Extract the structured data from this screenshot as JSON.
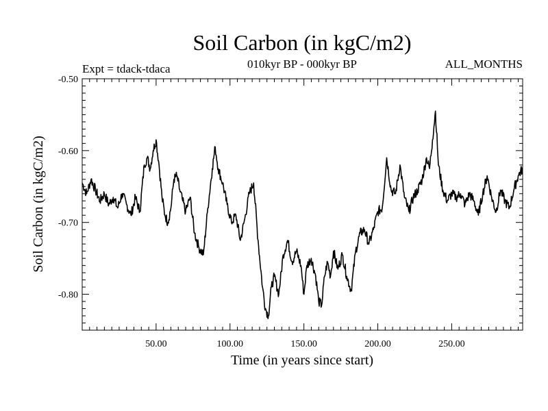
{
  "chart_data": {
    "type": "line",
    "title": "Soil Carbon (in kgC/m2)",
    "subtitle_left": "Expt = tdack-tdaca",
    "subtitle_center": "010kyr BP - 000kyr BP",
    "subtitle_right": "ALL_MONTHS",
    "xlabel": "Time (in years since start)",
    "ylabel": "Soil Carbon (in kgC/m2)",
    "xlim": [
      0,
      298
    ],
    "ylim": [
      -0.85,
      -0.5
    ],
    "x_ticks": [
      50,
      100,
      150,
      200,
      250
    ],
    "x_tick_labels": [
      "50.00",
      "100.00",
      "150.00",
      "200.00",
      "250.00"
    ],
    "y_ticks": [
      -0.5,
      -0.6,
      -0.7,
      -0.8
    ],
    "y_tick_labels": [
      "-0.50",
      "-0.60",
      "-0.70",
      "-0.80"
    ],
    "grid": false,
    "series": [
      {
        "name": "Soil Carbon",
        "color": "#000000",
        "x": [
          0,
          3,
          6,
          9,
          12,
          15,
          18,
          21,
          24,
          27,
          30,
          33,
          36,
          39,
          42,
          44,
          46,
          48,
          50,
          52,
          54,
          56,
          58,
          60,
          62,
          64,
          66,
          68,
          70,
          73,
          76,
          79,
          82,
          85,
          88,
          90,
          92,
          95,
          98,
          101,
          104,
          107,
          110,
          113,
          116,
          119,
          122,
          124,
          126,
          128,
          130,
          133,
          136,
          139,
          142,
          145,
          148,
          150,
          152,
          155,
          158,
          160,
          162,
          164,
          166,
          168,
          170,
          173,
          176,
          179,
          182,
          185,
          188,
          191,
          194,
          197,
          200,
          203,
          206,
          209,
          212,
          215,
          218,
          221,
          224,
          227,
          230,
          233,
          235,
          237,
          239,
          241,
          244,
          247,
          250,
          253,
          256,
          259,
          262,
          265,
          268,
          271,
          274,
          277,
          280,
          283,
          286,
          289,
          292,
          295,
          298
        ],
        "values": [
          -0.645,
          -0.66,
          -0.64,
          -0.655,
          -0.67,
          -0.66,
          -0.675,
          -0.665,
          -0.68,
          -0.66,
          -0.675,
          -0.69,
          -0.665,
          -0.685,
          -0.62,
          -0.61,
          -0.625,
          -0.6,
          -0.585,
          -0.62,
          -0.665,
          -0.69,
          -0.7,
          -0.68,
          -0.64,
          -0.635,
          -0.655,
          -0.67,
          -0.685,
          -0.665,
          -0.715,
          -0.735,
          -0.745,
          -0.68,
          -0.625,
          -0.595,
          -0.625,
          -0.645,
          -0.675,
          -0.7,
          -0.69,
          -0.725,
          -0.695,
          -0.66,
          -0.645,
          -0.725,
          -0.79,
          -0.82,
          -0.83,
          -0.79,
          -0.775,
          -0.8,
          -0.745,
          -0.725,
          -0.755,
          -0.74,
          -0.76,
          -0.8,
          -0.76,
          -0.75,
          -0.775,
          -0.81,
          -0.815,
          -0.775,
          -0.755,
          -0.775,
          -0.74,
          -0.765,
          -0.745,
          -0.775,
          -0.795,
          -0.74,
          -0.715,
          -0.71,
          -0.73,
          -0.71,
          -0.685,
          -0.68,
          -0.61,
          -0.655,
          -0.66,
          -0.62,
          -0.665,
          -0.685,
          -0.665,
          -0.655,
          -0.64,
          -0.61,
          -0.625,
          -0.585,
          -0.545,
          -0.62,
          -0.655,
          -0.67,
          -0.66,
          -0.665,
          -0.66,
          -0.675,
          -0.66,
          -0.67,
          -0.69,
          -0.66,
          -0.635,
          -0.665,
          -0.685,
          -0.655,
          -0.67,
          -0.68,
          -0.655,
          -0.635,
          -0.625
        ]
      }
    ]
  }
}
